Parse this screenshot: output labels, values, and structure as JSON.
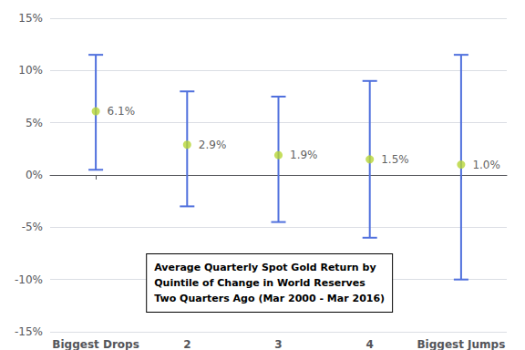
{
  "chart_data": {
    "type": "errorbar",
    "categories": [
      "Biggest Drops",
      "2",
      "3",
      "4",
      "Biggest Jumps"
    ],
    "values": [
      6.1,
      2.9,
      1.9,
      1.5,
      1.0
    ],
    "value_labels": [
      "6.1%",
      "2.9%",
      "1.9%",
      "1.5%",
      "1.0%"
    ],
    "upper": [
      11.5,
      8.0,
      7.5,
      9.0,
      11.5
    ],
    "lower": [
      0.5,
      -3.0,
      -4.5,
      -6.0,
      -10.0
    ],
    "data_labels": true,
    "ylim": [
      -15,
      15
    ],
    "yticks": [
      {
        "value": -15,
        "label": "-15%"
      },
      {
        "value": -10,
        "label": "-10%"
      },
      {
        "value": -5,
        "label": "-5%"
      },
      {
        "value": 0,
        "label": "0%"
      },
      {
        "value": 5,
        "label": "5%"
      },
      {
        "value": 10,
        "label": "10%"
      },
      {
        "value": 15,
        "label": "15%"
      }
    ],
    "grid": true,
    "annotation": "Average Quarterly Spot Gold Return by\nQuintile of Change in World Reserves\nTwo Quarters Ago (Mar 2000 - Mar 2016)"
  }
}
